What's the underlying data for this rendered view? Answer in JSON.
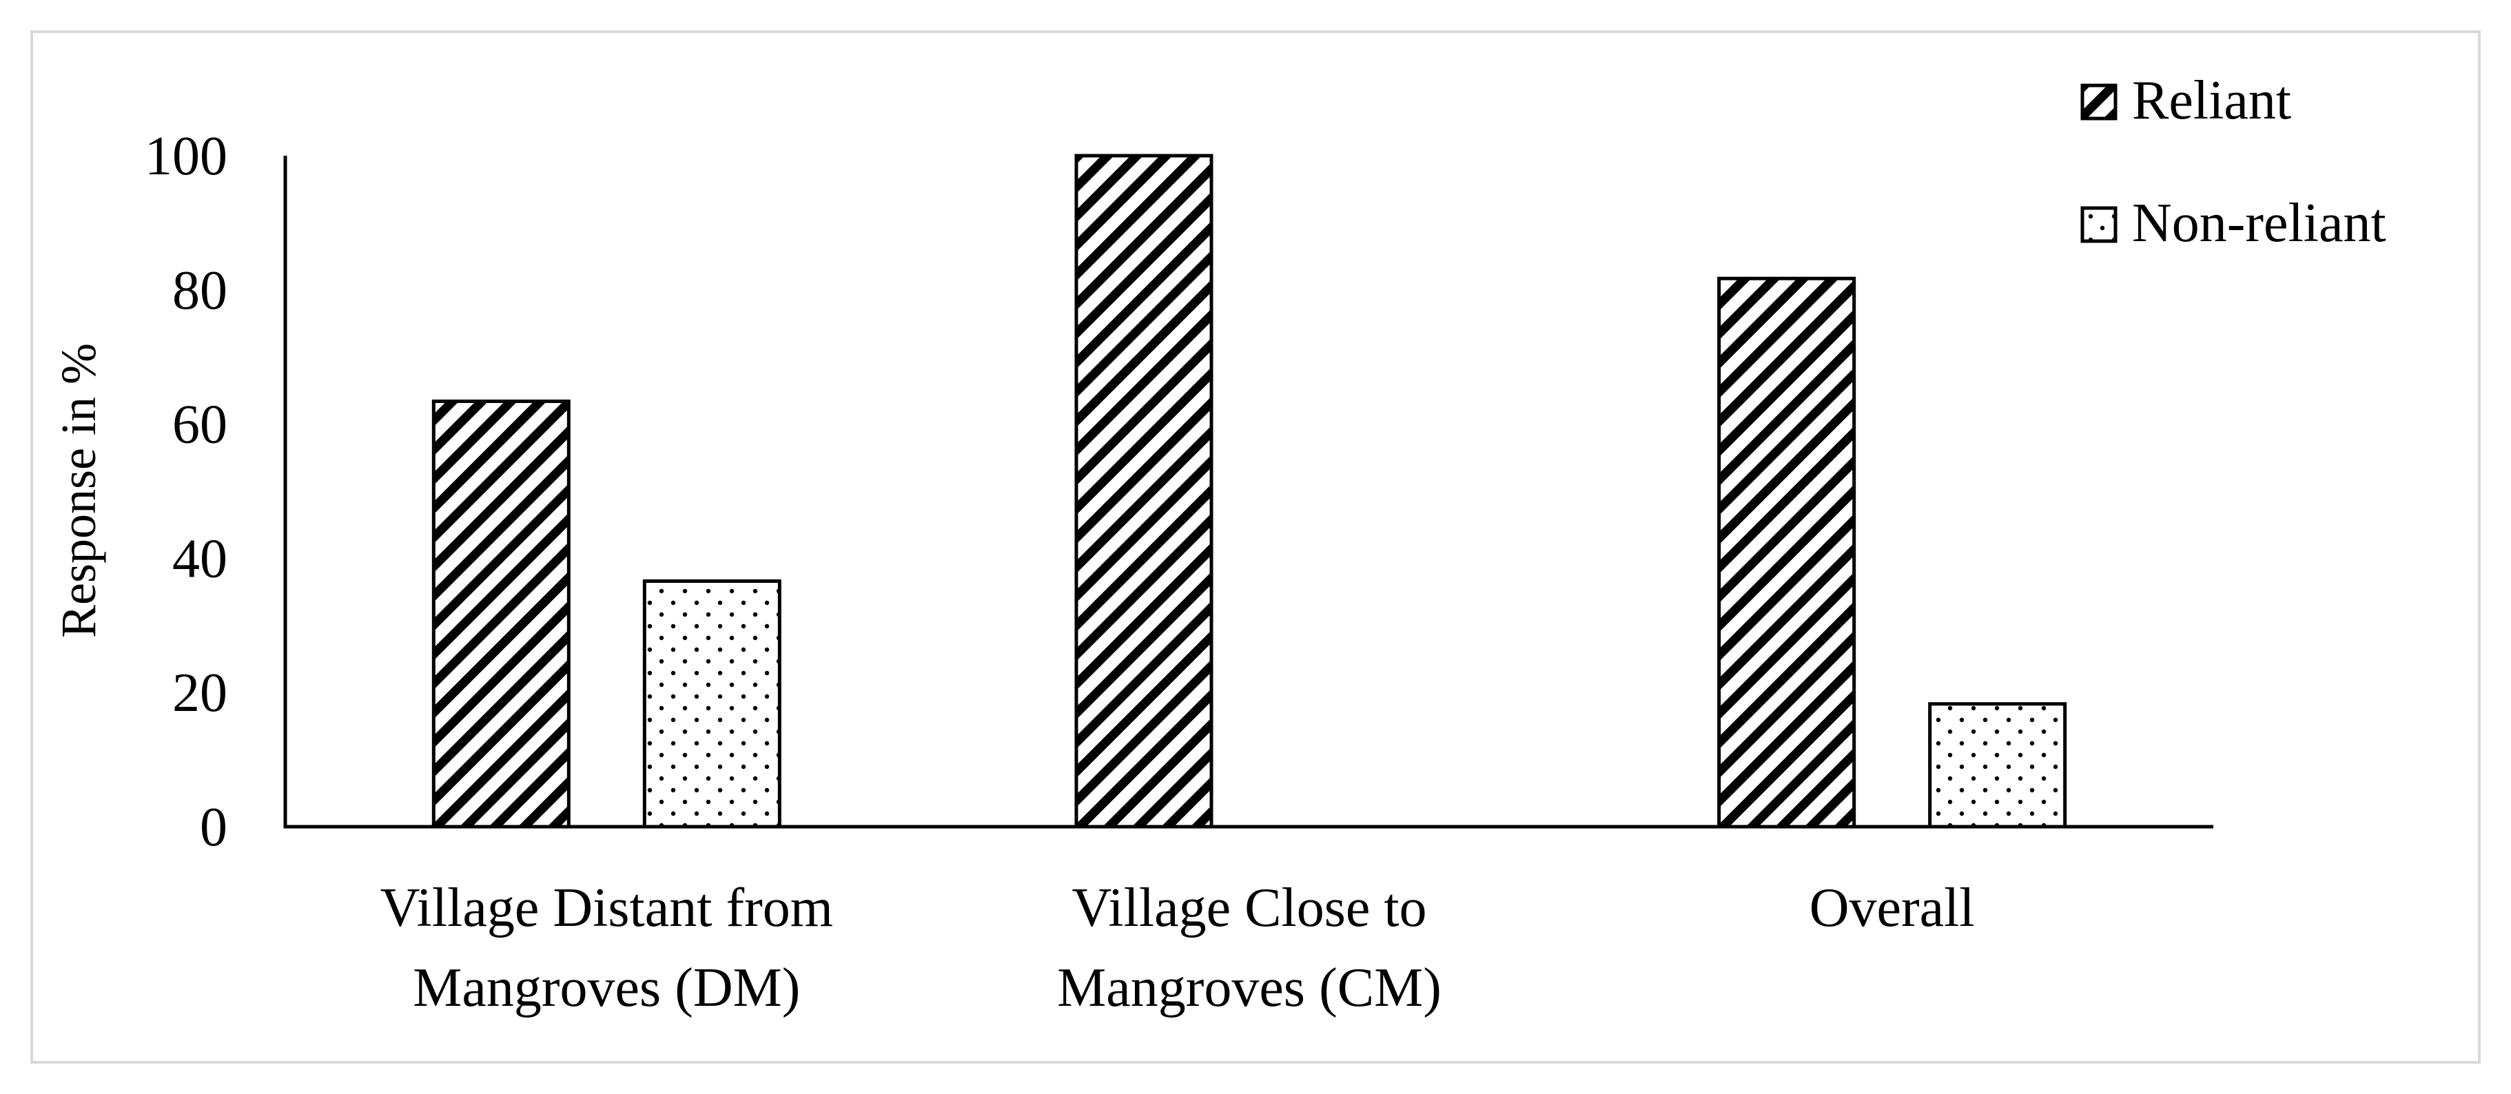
{
  "chart_data": {
    "type": "bar",
    "categories": [
      [
        "Village Distant from",
        "Mangroves (DM)"
      ],
      [
        "Village Close to",
        "Mangroves (CM)"
      ],
      [
        "Overall"
      ]
    ],
    "series": [
      {
        "name": "Reliant",
        "values": [
          63.4,
          100,
          81.7
        ],
        "pattern": "diagonal-hatch"
      },
      {
        "name": "Non-reliant",
        "values": [
          36.6,
          0,
          18.3
        ],
        "pattern": "dots"
      }
    ],
    "ylabel": "Response in %",
    "ylim": [
      0,
      100
    ],
    "yticks": [
      0,
      20,
      40,
      60,
      80,
      100
    ],
    "grid": false,
    "legend_position": "top-right"
  },
  "colors": {
    "axis": "#000000",
    "frame": "#d9d9d9",
    "bar_fill": "#ffffff"
  }
}
